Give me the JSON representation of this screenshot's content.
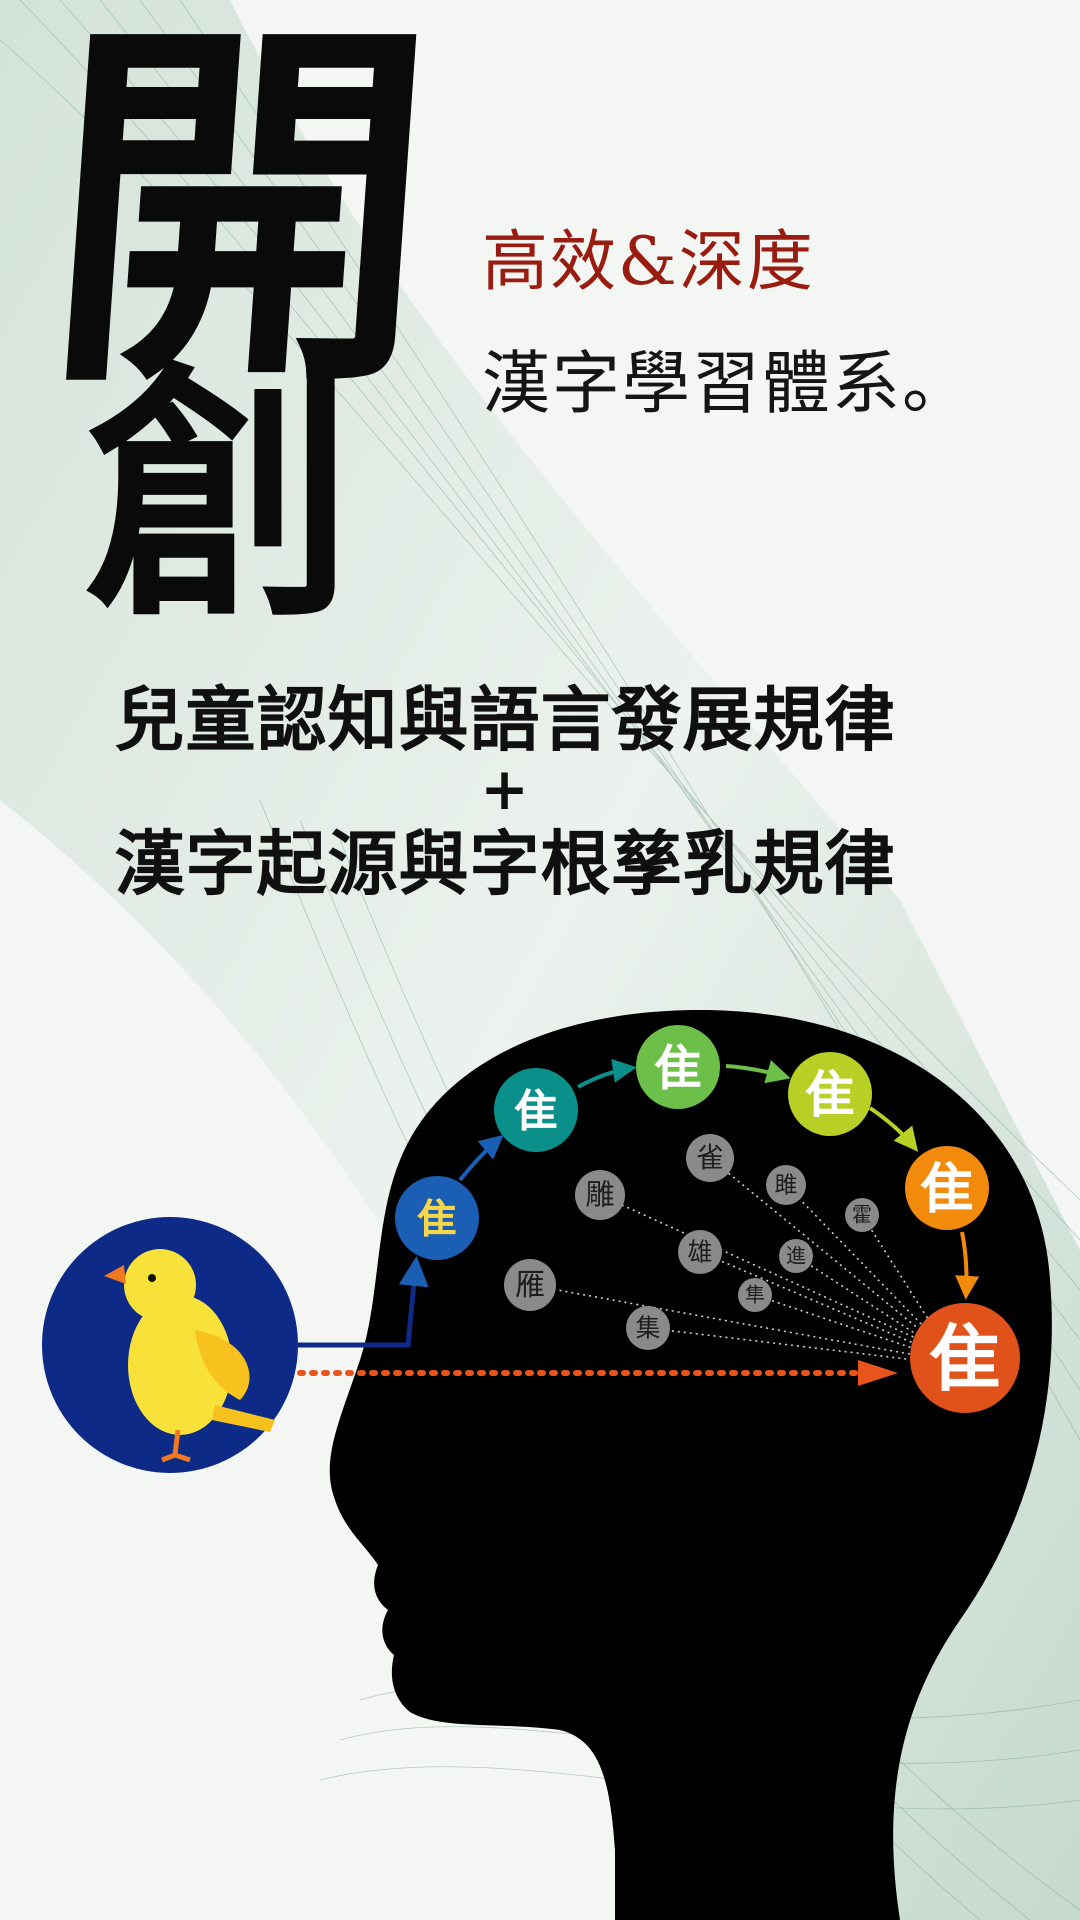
{
  "headline": {
    "char1": "開",
    "char2": "創"
  },
  "subtitle": {
    "red": "高效&深度",
    "black": "漢字學習體系。"
  },
  "formula": {
    "line1": "兒童認知與語言發展規律",
    "plus": "+",
    "line2": "漢字起源與字根孳乳規律"
  },
  "evolution": {
    "stages": [
      "隹",
      "隹",
      "隹",
      "隹",
      "隹",
      "隹"
    ],
    "colors": [
      "#1a5fb4",
      "#0b8f8a",
      "#6cc04a",
      "#b9cf26",
      "#f28a0c",
      "#e1521b"
    ]
  },
  "derived_chars": [
    "雀",
    "雕",
    "雎",
    "霍",
    "雄",
    "進",
    "雁",
    "隼",
    "集"
  ],
  "colors": {
    "accent_red": "#9a1c10",
    "bird_bg": "#0c2a86",
    "arrow_orange": "#e8541c"
  }
}
